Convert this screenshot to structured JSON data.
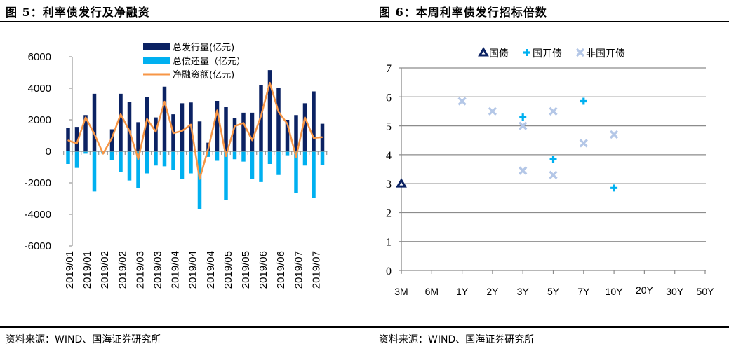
{
  "left": {
    "title": "图 5：利率债发行及净融资",
    "source": "资料来源：WIND、国海证券研究所"
  },
  "right": {
    "title": "图 6：本周利率债发行招标倍数",
    "source": "资料来源：WIND、国海证券研究所"
  },
  "colors": {
    "issuance": "#0b2263",
    "repayment": "#00b0f0",
    "net": "#f79646",
    "gov": "#0b2263",
    "cdb": "#00b0f0",
    "noncdb": "#b4c7e7",
    "axis": "#868686",
    "grid": "#8c8c8c"
  },
  "chart_data": [
    {
      "type": "bar",
      "title": "图 5：利率债发行及净融资",
      "xlabel": "",
      "ylabel": "",
      "ylim": [
        -6000,
        6000
      ],
      "yticks": [
        "6000",
        "4000",
        "2000",
        "0",
        "-2000",
        "-4000",
        "-6000"
      ],
      "yticks_values": [
        6000,
        4000,
        2000,
        0,
        -2000,
        -4000,
        -6000
      ],
      "xtick_labels": [
        "2019/01",
        "2019/01",
        "2019/02",
        "2019/02",
        "2019/03",
        "2019/03",
        "2019/04",
        "2019/04",
        "2019/04",
        "2019/05",
        "2019/05",
        "2019/06",
        "2019/06",
        "2019/07",
        "2019/07"
      ],
      "legend_position": "top",
      "series": [
        {
          "name": "总发行量(亿元)",
          "type": "bar",
          "values": [
            1500,
            1550,
            2300,
            3650,
            0,
            1400,
            3650,
            3150,
            1850,
            3450,
            2150,
            4100,
            2350,
            3050,
            3100,
            1900,
            550,
            3200,
            2800,
            2100,
            2450,
            2450,
            4200,
            5150,
            4000,
            2000,
            2300,
            3050,
            3800,
            1750
          ]
        },
        {
          "name": "总偿还量（亿元）",
          "type": "bar",
          "values": [
            -800,
            -1050,
            -150,
            -2550,
            -150,
            -550,
            -1300,
            -1850,
            -2350,
            -1400,
            -900,
            -950,
            -1200,
            -1750,
            -1400,
            -3650,
            -350,
            -600,
            -3100,
            -500,
            -650,
            -1750,
            -1950,
            -800,
            -1500,
            -250,
            -2650,
            -900,
            -2950,
            -850
          ]
        },
        {
          "name": "净融资额(亿元)",
          "type": "line",
          "values": [
            700,
            500,
            2150,
            1100,
            -150,
            850,
            2350,
            1300,
            -500,
            2050,
            1250,
            3150,
            1150,
            1300,
            1700,
            -1750,
            200,
            2600,
            -300,
            1600,
            1800,
            700,
            2250,
            4350,
            2500,
            1750,
            -350,
            2150,
            850,
            900
          ]
        }
      ]
    },
    {
      "type": "scatter",
      "title": "图 6：本周利率债发行招标倍数",
      "xlabel": "",
      "ylabel": "",
      "ylim": [
        0,
        7
      ],
      "yticks": [
        "7",
        "6",
        "5",
        "4",
        "3",
        "2",
        "1",
        "0"
      ],
      "yticks_values": [
        7,
        6,
        5,
        4,
        3,
        2,
        1,
        0
      ],
      "categories": [
        "3M",
        "6M",
        "1Y",
        "2Y",
        "3Y",
        "5Y",
        "7Y",
        "10Y",
        "20Y",
        "30Y",
        "50Y"
      ],
      "grid": true,
      "legend_position": "top",
      "series": [
        {
          "name": "国债",
          "marker": "triangle",
          "points": [
            {
              "x": "3M",
              "y": 3.0
            }
          ]
        },
        {
          "name": "国开债",
          "marker": "plus",
          "points": [
            {
              "x": "3Y",
              "y": 5.3
            },
            {
              "x": "5Y",
              "y": 3.85
            },
            {
              "x": "7Y",
              "y": 5.85
            },
            {
              "x": "10Y",
              "y": 2.85
            }
          ]
        },
        {
          "name": "非国开债",
          "marker": "x",
          "points": [
            {
              "x": "1Y",
              "y": 5.85
            },
            {
              "x": "2Y",
              "y": 5.5
            },
            {
              "x": "3Y",
              "y": 5.0
            },
            {
              "x": "3Y",
              "y": 3.45
            },
            {
              "x": "5Y",
              "y": 5.5
            },
            {
              "x": "5Y",
              "y": 3.3
            },
            {
              "x": "7Y",
              "y": 4.4
            },
            {
              "x": "10Y",
              "y": 4.7
            }
          ]
        }
      ]
    }
  ]
}
